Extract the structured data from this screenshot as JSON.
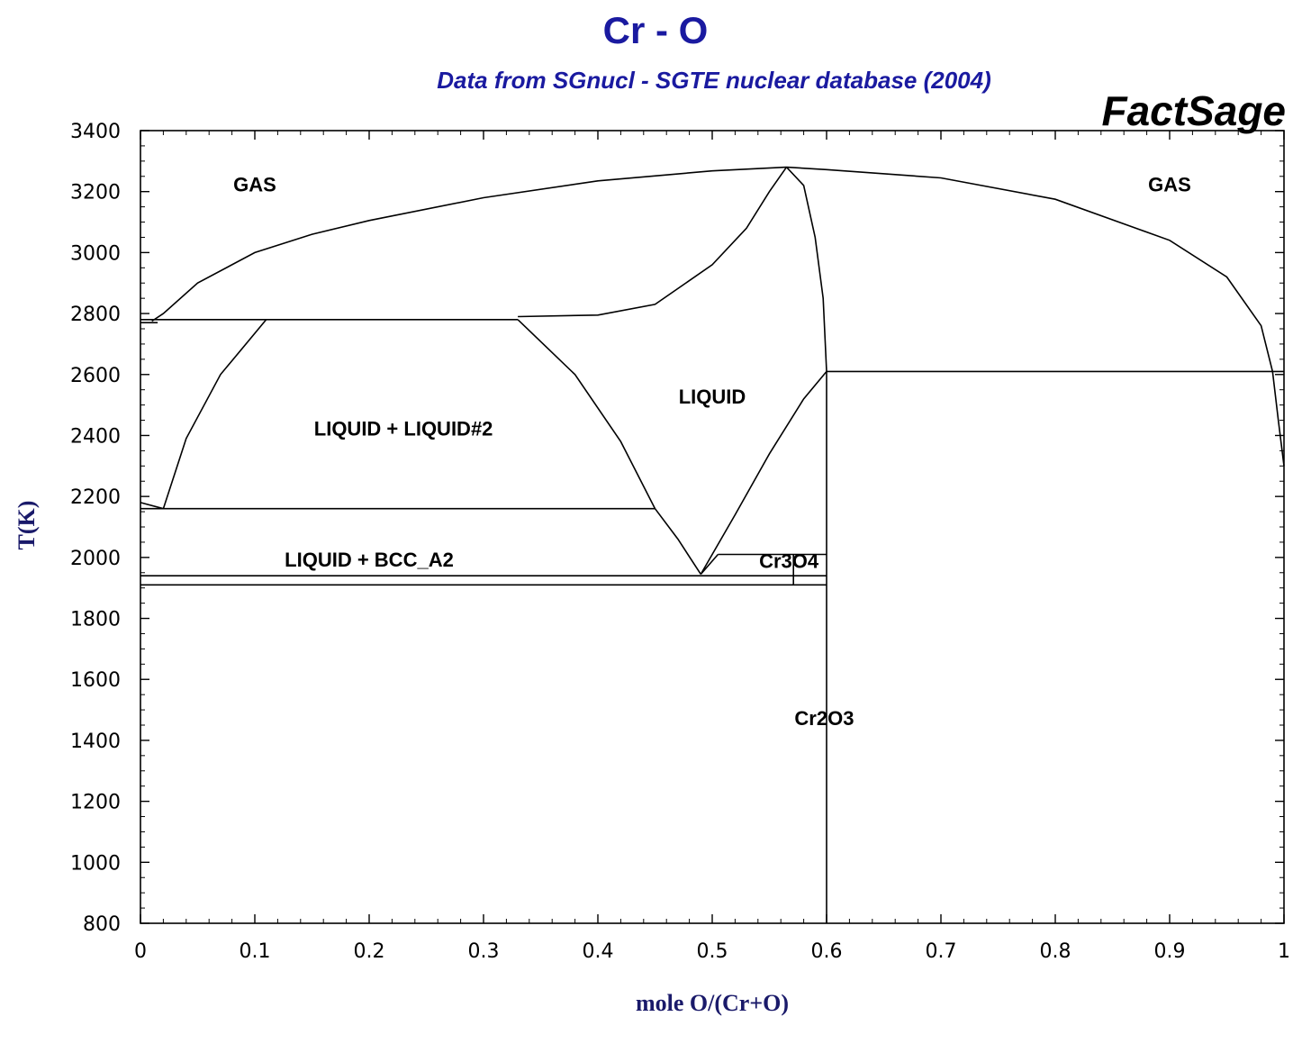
{
  "chart_data": {
    "type": "line",
    "title": "Cr - O",
    "subtitle": "Data from SGnucl - SGTE nuclear database (2004)",
    "brand": "FactSage",
    "xlabel": "mole O/(Cr+O)",
    "ylabel": "T(K)",
    "xlim": [
      0,
      1
    ],
    "ylim": [
      800,
      3400
    ],
    "x_ticks": [
      0,
      0.1,
      0.2,
      0.3,
      0.4,
      0.5,
      0.6,
      0.7,
      0.8,
      0.9,
      1
    ],
    "x_tick_labels": [
      "0",
      "0.1",
      "0.2",
      "0.3",
      "0.4",
      "0.5",
      "0.6",
      "0.7",
      "0.8",
      "0.9",
      "1"
    ],
    "y_ticks": [
      800,
      1000,
      1200,
      1400,
      1600,
      1800,
      2000,
      2200,
      2400,
      2600,
      2800,
      3000,
      3200,
      3400
    ],
    "y_tick_labels": [
      "800",
      "1000",
      "1200",
      "1400",
      "1600",
      "1800",
      "2000",
      "2200",
      "2400",
      "2600",
      "2800",
      "3000",
      "3200",
      "3400"
    ],
    "grid": false,
    "series": [
      {
        "id": "gas-liquidus-left",
        "points": [
          [
            0.01,
            2775
          ],
          [
            0.02,
            2800
          ],
          [
            0.05,
            2900
          ],
          [
            0.1,
            3000
          ],
          [
            0.15,
            3060
          ],
          [
            0.2,
            3105
          ],
          [
            0.3,
            3180
          ],
          [
            0.4,
            3235
          ],
          [
            0.5,
            3268
          ],
          [
            0.565,
            3280
          ]
        ]
      },
      {
        "id": "gas-liquidus-right",
        "points": [
          [
            0.565,
            3280
          ],
          [
            0.6,
            3272
          ],
          [
            0.7,
            3245
          ],
          [
            0.8,
            3175
          ],
          [
            0.9,
            3040
          ],
          [
            0.95,
            2920
          ],
          [
            0.98,
            2760
          ],
          [
            0.99,
            2610
          ],
          [
            0.995,
            2450
          ],
          [
            1.0,
            2300
          ]
        ]
      },
      {
        "id": "liquid-upper-boundary",
        "points": [
          [
            0.33,
            2790
          ],
          [
            0.4,
            2795
          ],
          [
            0.45,
            2830
          ],
          [
            0.5,
            2960
          ],
          [
            0.53,
            3080
          ],
          [
            0.55,
            3200
          ],
          [
            0.565,
            3280
          ]
        ]
      },
      {
        "id": "cr2o3-liquidus",
        "points": [
          [
            0.565,
            3280
          ],
          [
            0.58,
            3220
          ],
          [
            0.59,
            3050
          ],
          [
            0.597,
            2850
          ],
          [
            0.6,
            2610
          ]
        ]
      },
      {
        "id": "monotectic-line",
        "points": [
          [
            0,
            2780
          ],
          [
            0.33,
            2780
          ]
        ]
      },
      {
        "id": "gas-liquid-left-edge",
        "points": [
          [
            0,
            2770
          ],
          [
            0.015,
            2770
          ]
        ]
      },
      {
        "id": "miscibility-gap-left",
        "points": [
          [
            0.02,
            2160
          ],
          [
            0.04,
            2390
          ],
          [
            0.07,
            2600
          ],
          [
            0.11,
            2780
          ]
        ]
      },
      {
        "id": "miscibility-gap-right",
        "points": [
          [
            0.33,
            2780
          ],
          [
            0.38,
            2600
          ],
          [
            0.42,
            2380
          ],
          [
            0.45,
            2160
          ]
        ]
      },
      {
        "id": "eutectic-2160",
        "points": [
          [
            0,
            2160
          ],
          [
            0.45,
            2160
          ]
        ]
      },
      {
        "id": "bcc-liquidus-small",
        "points": [
          [
            0,
            2180
          ],
          [
            0.02,
            2160
          ]
        ]
      },
      {
        "id": "liquid-to-eutectic",
        "points": [
          [
            0.45,
            2160
          ],
          [
            0.47,
            2060
          ],
          [
            0.49,
            1945
          ]
        ]
      },
      {
        "id": "liquid-rise-to-cr2o3",
        "points": [
          [
            0.49,
            1945
          ],
          [
            0.52,
            2140
          ],
          [
            0.55,
            2340
          ],
          [
            0.58,
            2520
          ],
          [
            0.6,
            2610
          ]
        ]
      },
      {
        "id": "cr3o4-top",
        "points": [
          [
            0.505,
            2010
          ],
          [
            0.6,
            2010
          ]
        ]
      },
      {
        "id": "cr3o4-left-edge",
        "points": [
          [
            0.49,
            1945
          ],
          [
            0.505,
            2010
          ]
        ]
      },
      {
        "id": "cr3o4-vertical",
        "points": [
          [
            0.571,
            1910
          ],
          [
            0.571,
            2010
          ]
        ]
      },
      {
        "id": "eutectic-1940",
        "points": [
          [
            0,
            1940
          ],
          [
            0.6,
            1940
          ]
        ]
      },
      {
        "id": "eutectoid-1910",
        "points": [
          [
            0,
            1910
          ],
          [
            0.6,
            1910
          ]
        ]
      },
      {
        "id": "cr2o3-line",
        "points": [
          [
            0.6,
            800
          ],
          [
            0.6,
            2610
          ]
        ]
      },
      {
        "id": "peritectic-2610",
        "points": [
          [
            0.6,
            2610
          ],
          [
            1,
            2610
          ]
        ]
      }
    ],
    "annotations": [
      {
        "text": "GAS",
        "x": 0.1,
        "y": 3200
      },
      {
        "text": "GAS",
        "x": 0.9,
        "y": 3200
      },
      {
        "text": "LIQUID",
        "x": 0.5,
        "y": 2505
      },
      {
        "text": "LIQUID + LIQUID#2",
        "x": 0.23,
        "y": 2400
      },
      {
        "text": "LIQUID + BCC_A2",
        "x": 0.2,
        "y": 1970
      },
      {
        "text": "Cr3O4",
        "x": 0.567,
        "y": 1965
      },
      {
        "text": "Cr2O3",
        "x": 0.598,
        "y": 1450
      }
    ]
  }
}
